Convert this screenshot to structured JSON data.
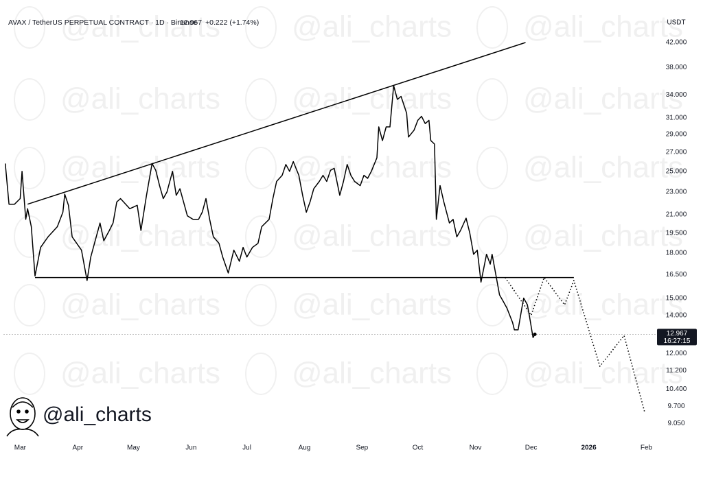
{
  "header": {
    "symbol": "AVAX / TetherUS PERPETUAL CONTRACT · 1D · Binance",
    "change": "+0.222 (+1.74%)"
  },
  "brand": "@ali_charts",
  "countdown": "16:27:15",
  "chart_data": {
    "type": "line",
    "y_unit": "USDT",
    "log_scale": true,
    "last_price": 12.967,
    "xlim": [
      -9,
      342
    ],
    "ylim": [
      8.6,
      45
    ],
    "xticks": [
      {
        "value": 0,
        "label": "Mar"
      },
      {
        "value": 31,
        "label": "Apr"
      },
      {
        "value": 61,
        "label": "May"
      },
      {
        "value": 92,
        "label": "Jun"
      },
      {
        "value": 122,
        "label": "Jul"
      },
      {
        "value": 153,
        "label": "Aug"
      },
      {
        "value": 184,
        "label": "Sep"
      },
      {
        "value": 214,
        "label": "Oct"
      },
      {
        "value": 245,
        "label": "Nov"
      },
      {
        "value": 275,
        "label": "Dec"
      },
      {
        "value": 306,
        "label": "2026",
        "bold": true
      },
      {
        "value": 337,
        "label": "Feb"
      }
    ],
    "yticks": [
      {
        "value": 42,
        "label": "42.000"
      },
      {
        "value": 38,
        "label": "38.000"
      },
      {
        "value": 34,
        "label": "34.000"
      },
      {
        "value": 31,
        "label": "31.000"
      },
      {
        "value": 29,
        "label": "29.000"
      },
      {
        "value": 27,
        "label": "27.000"
      },
      {
        "value": 25,
        "label": "25.000"
      },
      {
        "value": 23,
        "label": "23.000"
      },
      {
        "value": 21,
        "label": "21.000"
      },
      {
        "value": 19.5,
        "label": "19.500"
      },
      {
        "value": 18,
        "label": "18.000"
      },
      {
        "value": 16.5,
        "label": "16.500"
      },
      {
        "value": 15,
        "label": "15.000"
      },
      {
        "value": 14,
        "label": "14.000"
      },
      {
        "value": 12,
        "label": "12.000"
      },
      {
        "value": 11.2,
        "label": "11.200"
      },
      {
        "value": 10.4,
        "label": "10.400"
      },
      {
        "value": 9.7,
        "label": "9.700"
      },
      {
        "value": 9.05,
        "label": "9.050"
      }
    ],
    "series": [
      {
        "color": "#000000",
        "x": [
          -8,
          -6,
          -3,
          0,
          1,
          3,
          4,
          6,
          8,
          11,
          15,
          20,
          23,
          24,
          26,
          28,
          33,
          36,
          38,
          43,
          45,
          48,
          50,
          52,
          54,
          59,
          63,
          65,
          68,
          71,
          73,
          75,
          77,
          79,
          82,
          84,
          86,
          90,
          93,
          96,
          98,
          100,
          102,
          104,
          107,
          109,
          112,
          115,
          118,
          120,
          122,
          125,
          128,
          130,
          134,
          136,
          138,
          141,
          143,
          145,
          147,
          150,
          152,
          154,
          156,
          158,
          161,
          163,
          165,
          167,
          169,
          172,
          174,
          176,
          178,
          180,
          183,
          185,
          187,
          189,
          192,
          193,
          195,
          197,
          199,
          201,
          203,
          205,
          208,
          209,
          212,
          214,
          216,
          218,
          220,
          221,
          223,
          224,
          226,
          228,
          231,
          233,
          235,
          237,
          240,
          242,
          244,
          246,
          248,
          251,
          253,
          254,
          256,
          258,
          260,
          262,
          265,
          266,
          268,
          270,
          271,
          273,
          274,
          276,
          277
        ],
        "values": [
          25.8,
          21.9,
          21.9,
          22.4,
          25.0,
          20.6,
          21.5,
          20.0,
          16.4,
          18.4,
          19.2,
          20.0,
          21.2,
          22.8,
          21.8,
          19.2,
          18.2,
          16.1,
          17.7,
          20.3,
          18.9,
          19.7,
          20.3,
          22.1,
          22.4,
          21.5,
          21.8,
          19.7,
          22.7,
          25.8,
          25.1,
          23.6,
          22.4,
          23.0,
          25.0,
          22.7,
          23.3,
          20.9,
          20.6,
          20.6,
          21.2,
          22.4,
          20.6,
          19.2,
          18.7,
          17.7,
          16.6,
          18.2,
          17.4,
          18.4,
          17.7,
          18.4,
          18.7,
          20.0,
          20.6,
          22.4,
          24.0,
          24.6,
          25.7,
          25.0,
          26.0,
          24.6,
          22.7,
          21.2,
          22.1,
          23.3,
          24.0,
          24.6,
          24.0,
          25.1,
          25.3,
          22.7,
          24.0,
          25.7,
          24.6,
          24.0,
          23.6,
          24.6,
          24.3,
          25.0,
          26.4,
          29.9,
          28.3,
          29.9,
          29.9,
          35.3,
          33.4,
          33.8,
          31.6,
          28.7,
          29.5,
          30.7,
          31.2,
          30.3,
          30.7,
          28.3,
          27.9,
          20.6,
          23.6,
          22.1,
          20.3,
          20.6,
          19.2,
          19.7,
          20.7,
          19.5,
          17.9,
          18.2,
          16.0,
          17.9,
          17.2,
          17.9,
          16.5,
          15.2,
          14.8,
          14.4,
          13.6,
          13.2,
          13.2,
          14.4,
          15.0,
          14.6,
          14.0,
          12.8,
          12.967
        ]
      },
      {
        "color": "#000000",
        "dash": true,
        "x": [
          261,
          275,
          282,
          293,
          298,
          312,
          325,
          336
        ],
        "values": [
          16.3,
          14.0,
          16.3,
          14.6,
          16.1,
          11.4,
          12.9,
          9.5
        ]
      },
      {
        "color": "#000000",
        "x": [
          4,
          272
        ],
        "values": [
          21.9,
          42.0
        ]
      },
      {
        "color": "#000000",
        "x": [
          8,
          298
        ],
        "values": [
          16.3,
          16.3
        ]
      }
    ]
  }
}
